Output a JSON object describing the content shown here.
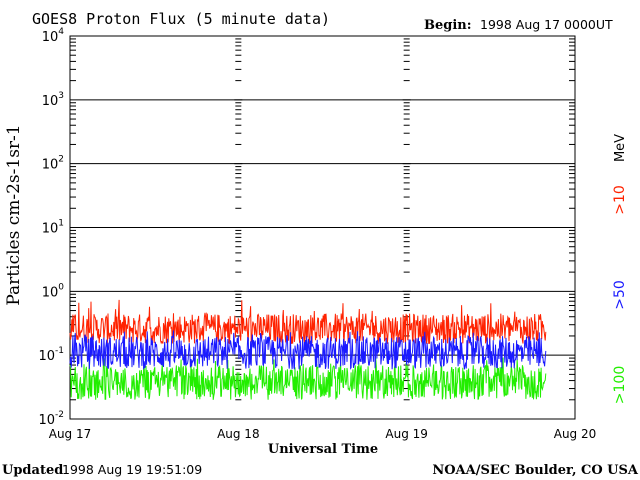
{
  "header": {
    "title": "GOES8 Proton Flux (5 minute data)",
    "begin_label": "Begin:",
    "begin_value": "1998 Aug 17 0000UT"
  },
  "footer": {
    "updated_label": "Updated",
    "updated_value": "1998 Aug 19 19:51:09",
    "credit": "NOAA/SEC Boulder, CO USA"
  },
  "chart_data": {
    "type": "line",
    "title": "GOES8 Proton Flux (5 minute data)",
    "xlabel": "Universal Time",
    "ylabel": "Particles cm-2s-1sr-1",
    "y_scale": "log",
    "ylim": [
      0.01,
      10000
    ],
    "y_ticks": [
      {
        "value": 10000,
        "base": "10",
        "exp": "4"
      },
      {
        "value": 1000,
        "base": "10",
        "exp": "3"
      },
      {
        "value": 100,
        "base": "10",
        "exp": "2"
      },
      {
        "value": 10,
        "base": "10",
        "exp": "1"
      },
      {
        "value": 1,
        "base": "10",
        "exp": "0"
      },
      {
        "value": 0.1,
        "base": "10",
        "exp": "-1"
      },
      {
        "value": 0.01,
        "base": "10",
        "exp": "-2"
      }
    ],
    "x_range": [
      "1998-08-17",
      "1998-08-20"
    ],
    "x_ticks": [
      "Aug 17",
      "Aug 18",
      "Aug 19",
      "Aug 20"
    ],
    "data_end": "1998-08-19T19:50",
    "grid": true,
    "legend_position": "right",
    "series": [
      {
        "name": ">10 MeV",
        "legend_label": ">10",
        "unit_label": "MeV",
        "color": "#ff2200",
        "typical_range": [
          0.15,
          0.45
        ],
        "peak": 0.75
      },
      {
        "name": ">50 MeV",
        "legend_label": ">50",
        "color": "#1a1aff",
        "typical_range": [
          0.06,
          0.2
        ],
        "peak": 0.25
      },
      {
        "name": ">100 MeV",
        "legend_label": ">100",
        "color": "#22ee00",
        "typical_range": [
          0.02,
          0.07
        ],
        "peak": 0.1
      }
    ]
  }
}
